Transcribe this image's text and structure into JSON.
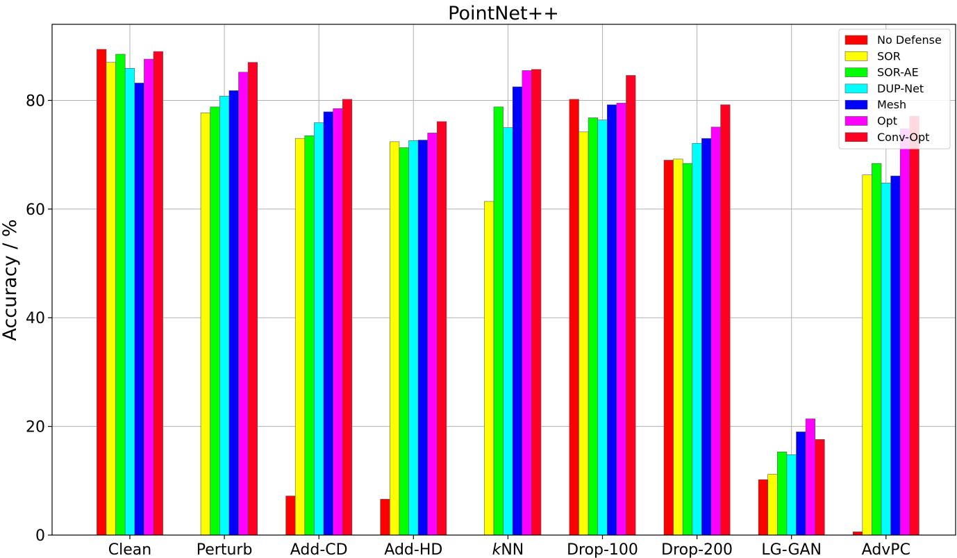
{
  "chart_data": {
    "type": "bar",
    "title": "PointNet++",
    "xlabel": "",
    "ylabel": "Accuracy / %",
    "ylim": [
      0,
      94
    ],
    "yticks": [
      0,
      20,
      40,
      60,
      80
    ],
    "grid": true,
    "legend_position": "top-right",
    "categories": [
      "Clean",
      "Perturb",
      "Add-CD",
      "Add-HD",
      "kNN",
      "Drop-100",
      "Drop-200",
      "LG-GAN",
      "AdvPC"
    ],
    "series": [
      {
        "name": "No Defense",
        "color": "#ff0000",
        "values": [
          89.4,
          0.0,
          7.2,
          6.6,
          0.0,
          80.2,
          69.0,
          10.2,
          0.6
        ]
      },
      {
        "name": "SOR",
        "color": "#ffff00",
        "values": [
          87.0,
          77.7,
          73.0,
          72.4,
          61.4,
          74.2,
          69.2,
          11.2,
          66.3
        ]
      },
      {
        "name": "SOR-AE",
        "color": "#00ff00",
        "values": [
          88.5,
          78.8,
          73.5,
          71.3,
          78.8,
          76.8,
          68.4,
          15.3,
          68.4
        ]
      },
      {
        "name": "DUP-Net",
        "color": "#00ffff",
        "values": [
          85.9,
          80.8,
          75.9,
          72.6,
          75.0,
          76.4,
          72.1,
          14.8,
          64.8
        ]
      },
      {
        "name": "Mesh",
        "color": "#0000ff",
        "values": [
          83.2,
          81.8,
          77.9,
          72.7,
          82.5,
          79.2,
          73.0,
          19.0,
          66.1
        ]
      },
      {
        "name": "Opt",
        "color": "#ff00ff",
        "values": [
          87.6,
          85.2,
          78.5,
          74.0,
          85.5,
          79.5,
          75.1,
          21.4,
          74.8
        ]
      },
      {
        "name": "Conv-Opt",
        "color": "#ff0022",
        "values": [
          89.0,
          87.0,
          80.2,
          76.1,
          85.7,
          84.6,
          79.2,
          17.6,
          77.1
        ]
      }
    ]
  }
}
